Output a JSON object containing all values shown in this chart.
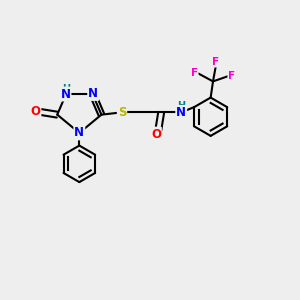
{
  "bg_color": "#eeeeee",
  "atom_colors": {
    "N": "#0000ff",
    "O": "#ff0000",
    "S": "#b8b800",
    "F": "#ff00cc",
    "H_label": "#008080",
    "C": "#000000"
  },
  "font_size": 8.5,
  "fig_size": [
    3.0,
    3.0
  ],
  "dpi": 100
}
